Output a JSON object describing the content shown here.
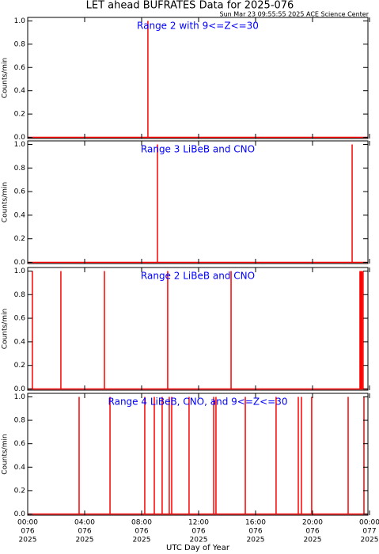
{
  "header": {
    "title": "LET ahead BUFRATES Data for 2025-076",
    "subtitle": "Sun Mar 23 09:55:55 2025 ACE Science Center"
  },
  "chart_data": [
    {
      "type": "spike",
      "title": "Range 2 with 9<=Z<=30",
      "y_label": "Counts/min",
      "color": "#ff0000",
      "x": [
        8.44
      ],
      "values": [
        1
      ],
      "xlim": [
        0,
        24
      ],
      "xticks": [
        0,
        4,
        8,
        12,
        16,
        20,
        24
      ],
      "ylim": [
        -0.01,
        1.03
      ],
      "yticks": [
        {
          "value": 0,
          "label": "0.0"
        },
        {
          "value": 0.2,
          "label": "0.2"
        },
        {
          "value": 0.4,
          "label": "0.4"
        },
        {
          "value": 0.6,
          "label": "0.6"
        },
        {
          "value": 0.8,
          "label": "0.8"
        },
        {
          "value": 1,
          "label": "1.0"
        }
      ]
    },
    {
      "type": "spike",
      "title": "Range 3 LiBeB and CNO",
      "y_label": "Counts/min",
      "color": "#ff0000",
      "x": [
        9.11,
        22.78
      ],
      "values": [
        1,
        1
      ],
      "xlim": [
        0,
        24
      ],
      "xticks": [
        0,
        4,
        8,
        12,
        16,
        20,
        24
      ],
      "ylim": [
        -0.01,
        1.03
      ],
      "yticks": [
        {
          "value": 0,
          "label": "0.0"
        },
        {
          "value": 0.2,
          "label": "0.2"
        },
        {
          "value": 0.4,
          "label": "0.4"
        },
        {
          "value": 0.6,
          "label": "0.6"
        },
        {
          "value": 0.8,
          "label": "0.8"
        },
        {
          "value": 1,
          "label": "1.0"
        }
      ]
    },
    {
      "type": "spike",
      "title": "Range 2 LiBeB and CNO",
      "y_label": "Counts/min",
      "color": "#ff0000",
      "x": [
        0.33,
        2.33,
        5.39,
        9.83,
        14.28,
        23.33,
        23.4,
        23.47,
        23.55
      ],
      "values": [
        1,
        1,
        1,
        1,
        1,
        1,
        1,
        1,
        1
      ],
      "xlim": [
        0,
        24
      ],
      "xticks": [
        0,
        4,
        8,
        12,
        16,
        20,
        24
      ],
      "ylim": [
        -0.01,
        1.03
      ],
      "yticks": [
        {
          "value": 0,
          "label": "0.0"
        },
        {
          "value": 0.2,
          "label": "0.2"
        },
        {
          "value": 0.4,
          "label": "0.4"
        },
        {
          "value": 0.6,
          "label": "0.6"
        },
        {
          "value": 0.8,
          "label": "0.8"
        },
        {
          "value": 1,
          "label": "1.0"
        }
      ]
    },
    {
      "type": "spike",
      "title": "Range 4 LiBeB, CNO, and 9<=Z<=30",
      "y_label": "Counts/min",
      "x_label": "UTC Day of Year",
      "color": "#ff0000",
      "x": [
        3.61,
        5.78,
        8.22,
        8.89,
        9.44,
        9.94,
        10.11,
        11.33,
        13.06,
        13.22,
        15.28,
        17.44,
        19.0,
        19.22,
        19.94,
        22.5,
        23.61
      ],
      "values": [
        1,
        1,
        1,
        1,
        1,
        1,
        1,
        1,
        1,
        1,
        1,
        1,
        1,
        1,
        1,
        1,
        1
      ],
      "xlim": [
        0,
        24
      ],
      "xticks": [
        {
          "value": 0,
          "label": [
            "00:00",
            "076",
            "2025"
          ]
        },
        {
          "value": 4,
          "label": [
            "04:00",
            "076",
            "2025"
          ]
        },
        {
          "value": 8,
          "label": [
            "08:00",
            "076",
            "2025"
          ]
        },
        {
          "value": 12,
          "label": [
            "12:00",
            "076",
            "2025"
          ]
        },
        {
          "value": 16,
          "label": [
            "16:00",
            "076",
            "2025"
          ]
        },
        {
          "value": 20,
          "label": [
            "20:00",
            "076",
            "2025"
          ]
        },
        {
          "value": 24,
          "label": [
            "00:00",
            "077",
            "2025"
          ]
        }
      ],
      "ylim": [
        -0.01,
        1.03
      ],
      "yticks": [
        {
          "value": 0,
          "label": "0.0"
        },
        {
          "value": 0.2,
          "label": "0.2"
        },
        {
          "value": 0.4,
          "label": "0.4"
        },
        {
          "value": 0.6,
          "label": "0.6"
        },
        {
          "value": 0.8,
          "label": "0.8"
        },
        {
          "value": 1,
          "label": "1.0"
        }
      ]
    }
  ]
}
